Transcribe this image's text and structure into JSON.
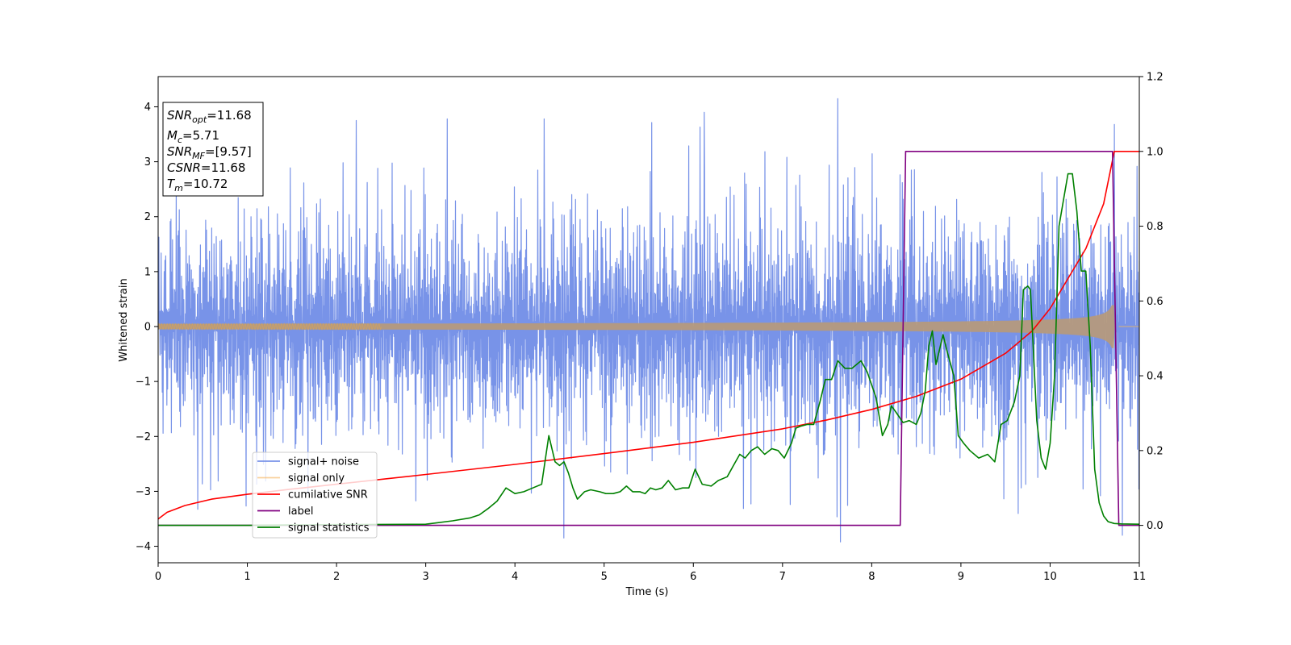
{
  "chart_data": {
    "type": "line",
    "xlabel": "Time (s)",
    "ylabel": "Whitened strain",
    "xlim": [
      0,
      11
    ],
    "ylim": [
      -4.3,
      4.55
    ],
    "y2lim": [
      -0.1,
      1.2
    ],
    "x_ticks": [
      0,
      1,
      2,
      3,
      4,
      5,
      6,
      7,
      8,
      9,
      10,
      11
    ],
    "y_ticks": [
      -4,
      -3,
      -2,
      -1,
      0,
      1,
      2,
      3,
      4
    ],
    "y2_ticks": [
      "0.0",
      "0.2",
      "0.4",
      "0.6",
      "0.8",
      "1.0",
      "1.2"
    ],
    "grid": false,
    "legend_position": "lower-left",
    "annotation": {
      "lines": [
        {
          "base": "SNR",
          "sub": "opt",
          "value": "=11.68"
        },
        {
          "base": "M",
          "sub": "c",
          "value": "=5.71"
        },
        {
          "base": "SNR",
          "sub": "MF",
          "value": "=[9.57]"
        },
        {
          "base": "CSNR",
          "sub": "",
          "value": "=11.68"
        },
        {
          "base": "T",
          "sub": "m",
          "value": "=10.72"
        }
      ]
    },
    "series": [
      {
        "name": "signal+ noise",
        "color": "#7893e8",
        "axis": "left",
        "kind": "noise_band",
        "typical_amplitude": 2.0,
        "peak_values": [
          {
            "x": 2.22,
            "y": 3.75
          },
          {
            "x": 3.24,
            "y": 3.78
          },
          {
            "x": 4.33,
            "y": 3.78
          },
          {
            "x": 6.12,
            "y": 3.9
          },
          {
            "x": 7.62,
            "y": 4.15
          },
          {
            "x": 10.72,
            "y": 3.68
          },
          {
            "x": 4.55,
            "y": -3.85
          },
          {
            "x": 7.65,
            "y": -3.92
          },
          {
            "x": 10.81,
            "y": -3.8
          }
        ]
      },
      {
        "name": "signal only",
        "color": "#f5b25a",
        "axis": "left",
        "kind": "chirp",
        "amplitude_start": 0.05,
        "amplitude_end": 0.85,
        "merger_time": 10.72
      },
      {
        "name": "cumilative SNR",
        "color": "#ff0000",
        "axis": "right",
        "x": [
          0,
          0.1,
          0.3,
          0.6,
          1,
          1.5,
          2,
          3,
          4,
          5,
          6,
          7,
          7.5,
          8,
          8.5,
          9,
          9.5,
          9.8,
          10,
          10.2,
          10.4,
          10.6,
          10.72,
          11
        ],
        "values": [
          0.017,
          0.035,
          0.053,
          0.07,
          0.083,
          0.097,
          0.11,
          0.136,
          0.163,
          0.192,
          0.222,
          0.258,
          0.282,
          0.31,
          0.345,
          0.391,
          0.46,
          0.52,
          0.58,
          0.66,
          0.74,
          0.86,
          1.0,
          1.0
        ]
      },
      {
        "name": "label",
        "color": "#800080",
        "axis": "right",
        "x": [
          0,
          8.32,
          8.38,
          10.7,
          10.77,
          11
        ],
        "values": [
          0,
          0,
          1,
          1,
          0,
          0
        ]
      },
      {
        "name": "signal statistics",
        "color": "#008000",
        "axis": "right",
        "x": [
          0,
          0.5,
          1,
          2,
          3,
          3.1,
          3.3,
          3.5,
          3.6,
          3.7,
          3.8,
          3.9,
          4.0,
          4.1,
          4.2,
          4.3,
          4.38,
          4.45,
          4.5,
          4.55,
          4.6,
          4.65,
          4.7,
          4.78,
          4.85,
          4.95,
          5.02,
          5.1,
          5.18,
          5.25,
          5.32,
          5.4,
          5.46,
          5.52,
          5.58,
          5.65,
          5.72,
          5.8,
          5.88,
          5.95,
          6.02,
          6.1,
          6.2,
          6.28,
          6.38,
          6.45,
          6.52,
          6.58,
          6.65,
          6.72,
          6.8,
          6.88,
          6.95,
          7.02,
          7.1,
          7.15,
          7.2,
          7.28,
          7.35,
          7.42,
          7.48,
          7.55,
          7.62,
          7.7,
          7.78,
          7.88,
          7.95,
          8.05,
          8.12,
          8.18,
          8.22,
          8.28,
          8.35,
          8.42,
          8.5,
          8.55,
          8.6,
          8.64,
          8.68,
          8.72,
          8.76,
          8.8,
          8.84,
          8.92,
          8.97,
          9.03,
          9.1,
          9.2,
          9.3,
          9.38,
          9.45,
          9.52,
          9.6,
          9.66,
          9.7,
          9.75,
          9.78,
          9.85,
          9.9,
          9.95,
          10.0,
          10.05,
          10.1,
          10.15,
          10.2,
          10.25,
          10.3,
          10.35,
          10.4,
          10.45,
          10.5,
          10.55,
          10.6,
          10.65,
          10.72,
          10.8,
          11
        ],
        "values": [
          0.0,
          0.0,
          0.0,
          0.002,
          0.003,
          0.006,
          0.012,
          0.02,
          0.028,
          0.045,
          0.065,
          0.1,
          0.085,
          0.09,
          0.1,
          0.11,
          0.24,
          0.17,
          0.16,
          0.17,
          0.14,
          0.1,
          0.07,
          0.09,
          0.095,
          0.09,
          0.085,
          0.085,
          0.09,
          0.105,
          0.09,
          0.09,
          0.085,
          0.1,
          0.095,
          0.1,
          0.12,
          0.095,
          0.1,
          0.1,
          0.15,
          0.11,
          0.105,
          0.12,
          0.13,
          0.16,
          0.19,
          0.18,
          0.2,
          0.21,
          0.19,
          0.205,
          0.2,
          0.18,
          0.22,
          0.26,
          0.265,
          0.27,
          0.27,
          0.33,
          0.39,
          0.39,
          0.44,
          0.42,
          0.42,
          0.44,
          0.41,
          0.34,
          0.24,
          0.27,
          0.32,
          0.3,
          0.275,
          0.28,
          0.27,
          0.3,
          0.36,
          0.48,
          0.52,
          0.43,
          0.47,
          0.51,
          0.47,
          0.4,
          0.24,
          0.22,
          0.2,
          0.18,
          0.19,
          0.17,
          0.27,
          0.28,
          0.33,
          0.4,
          0.63,
          0.64,
          0.63,
          0.28,
          0.18,
          0.15,
          0.22,
          0.4,
          0.8,
          0.87,
          0.94,
          0.94,
          0.84,
          0.68,
          0.68,
          0.48,
          0.15,
          0.06,
          0.025,
          0.01,
          0.005,
          0.004,
          0.003
        ]
      }
    ]
  }
}
